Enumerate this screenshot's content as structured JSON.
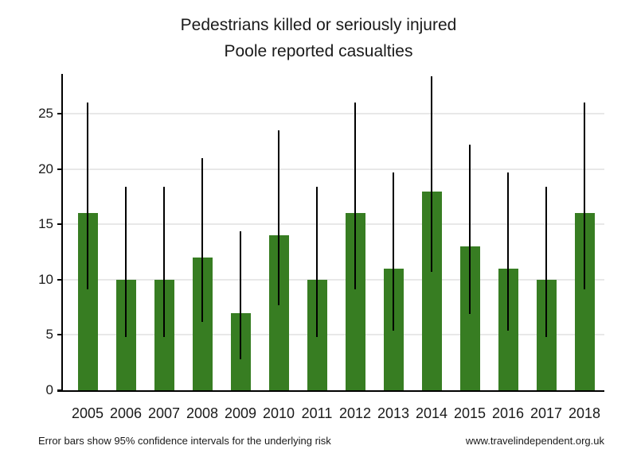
{
  "title": {
    "line1": "Pedestrians killed or seriously injured",
    "line2": "Poole reported casualties"
  },
  "footer": {
    "note": "Error bars show 95% confidence intervals for the underlying risk",
    "website": "www.travelindependent.org.uk"
  },
  "chart_data": {
    "type": "bar",
    "title": "Pedestrians killed or seriously injured",
    "subtitle": "Poole reported casualties",
    "categories": [
      "2005",
      "2006",
      "2007",
      "2008",
      "2009",
      "2010",
      "2011",
      "2012",
      "2013",
      "2014",
      "2015",
      "2016",
      "2017",
      "2018"
    ],
    "values": [
      16,
      10,
      10,
      12,
      7,
      14,
      10,
      16,
      11,
      18,
      13,
      11,
      10,
      16
    ],
    "error_low": [
      9.1,
      4.8,
      4.8,
      6.2,
      2.8,
      7.7,
      4.8,
      9.1,
      5.4,
      10.7,
      6.9,
      5.4,
      4.8,
      9.1
    ],
    "error_high": [
      26.0,
      18.4,
      18.4,
      21.0,
      14.4,
      23.5,
      18.4,
      26.0,
      19.7,
      28.4,
      22.2,
      19.7,
      18.4,
      26.0
    ],
    "xlabel": "",
    "ylabel": "",
    "yticks": [
      0,
      5,
      10,
      15,
      20,
      25
    ],
    "ylim": [
      0,
      28.6
    ],
    "grid": "horizontal",
    "legend": "none",
    "bar_color": "#377d22",
    "error_color": "#000000",
    "gridline_color": "#e8e8e8",
    "axis_color": "#000000",
    "annotation": "Error bars show 95% confidence intervals for the underlying risk"
  }
}
